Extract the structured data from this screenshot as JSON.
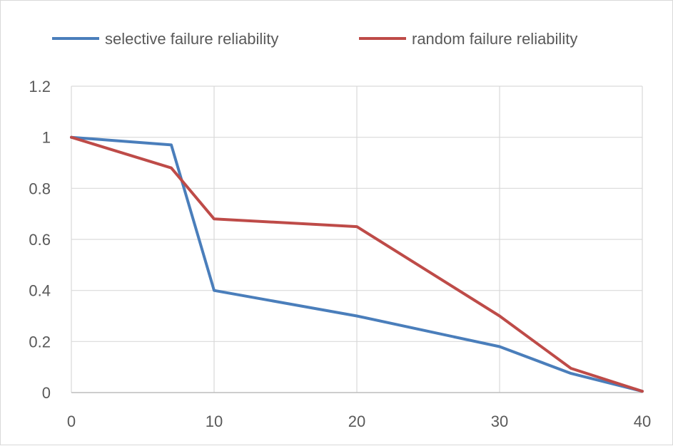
{
  "chart_data": {
    "type": "line",
    "title": "",
    "xlabel": "",
    "ylabel": "",
    "xlim": [
      0,
      40
    ],
    "ylim": [
      0,
      1.2
    ],
    "x_ticks": [
      0,
      10,
      20,
      30,
      40
    ],
    "y_ticks": [
      0,
      0.2,
      0.4,
      0.6,
      0.8,
      1,
      1.2
    ],
    "x_tick_labels": [
      "0",
      "10",
      "20",
      "30",
      "40"
    ],
    "y_tick_labels": [
      "0",
      "0.2",
      "0.4",
      "0.6",
      "0.8",
      "1",
      "1.2"
    ],
    "grid": true,
    "legend_position": "top",
    "series": [
      {
        "name": "selective failure reliability",
        "color": "#4a7ebb",
        "x": [
          0,
          7,
          10,
          20,
          30,
          35,
          40
        ],
        "y": [
          1,
          0.97,
          0.4,
          0.3,
          0.18,
          0.075,
          0.005
        ]
      },
      {
        "name": "random failure reliability",
        "color": "#be4b48",
        "x": [
          0,
          7,
          10,
          20,
          30,
          35,
          40
        ],
        "y": [
          1,
          0.88,
          0.68,
          0.65,
          0.3,
          0.095,
          0.005
        ]
      }
    ]
  }
}
